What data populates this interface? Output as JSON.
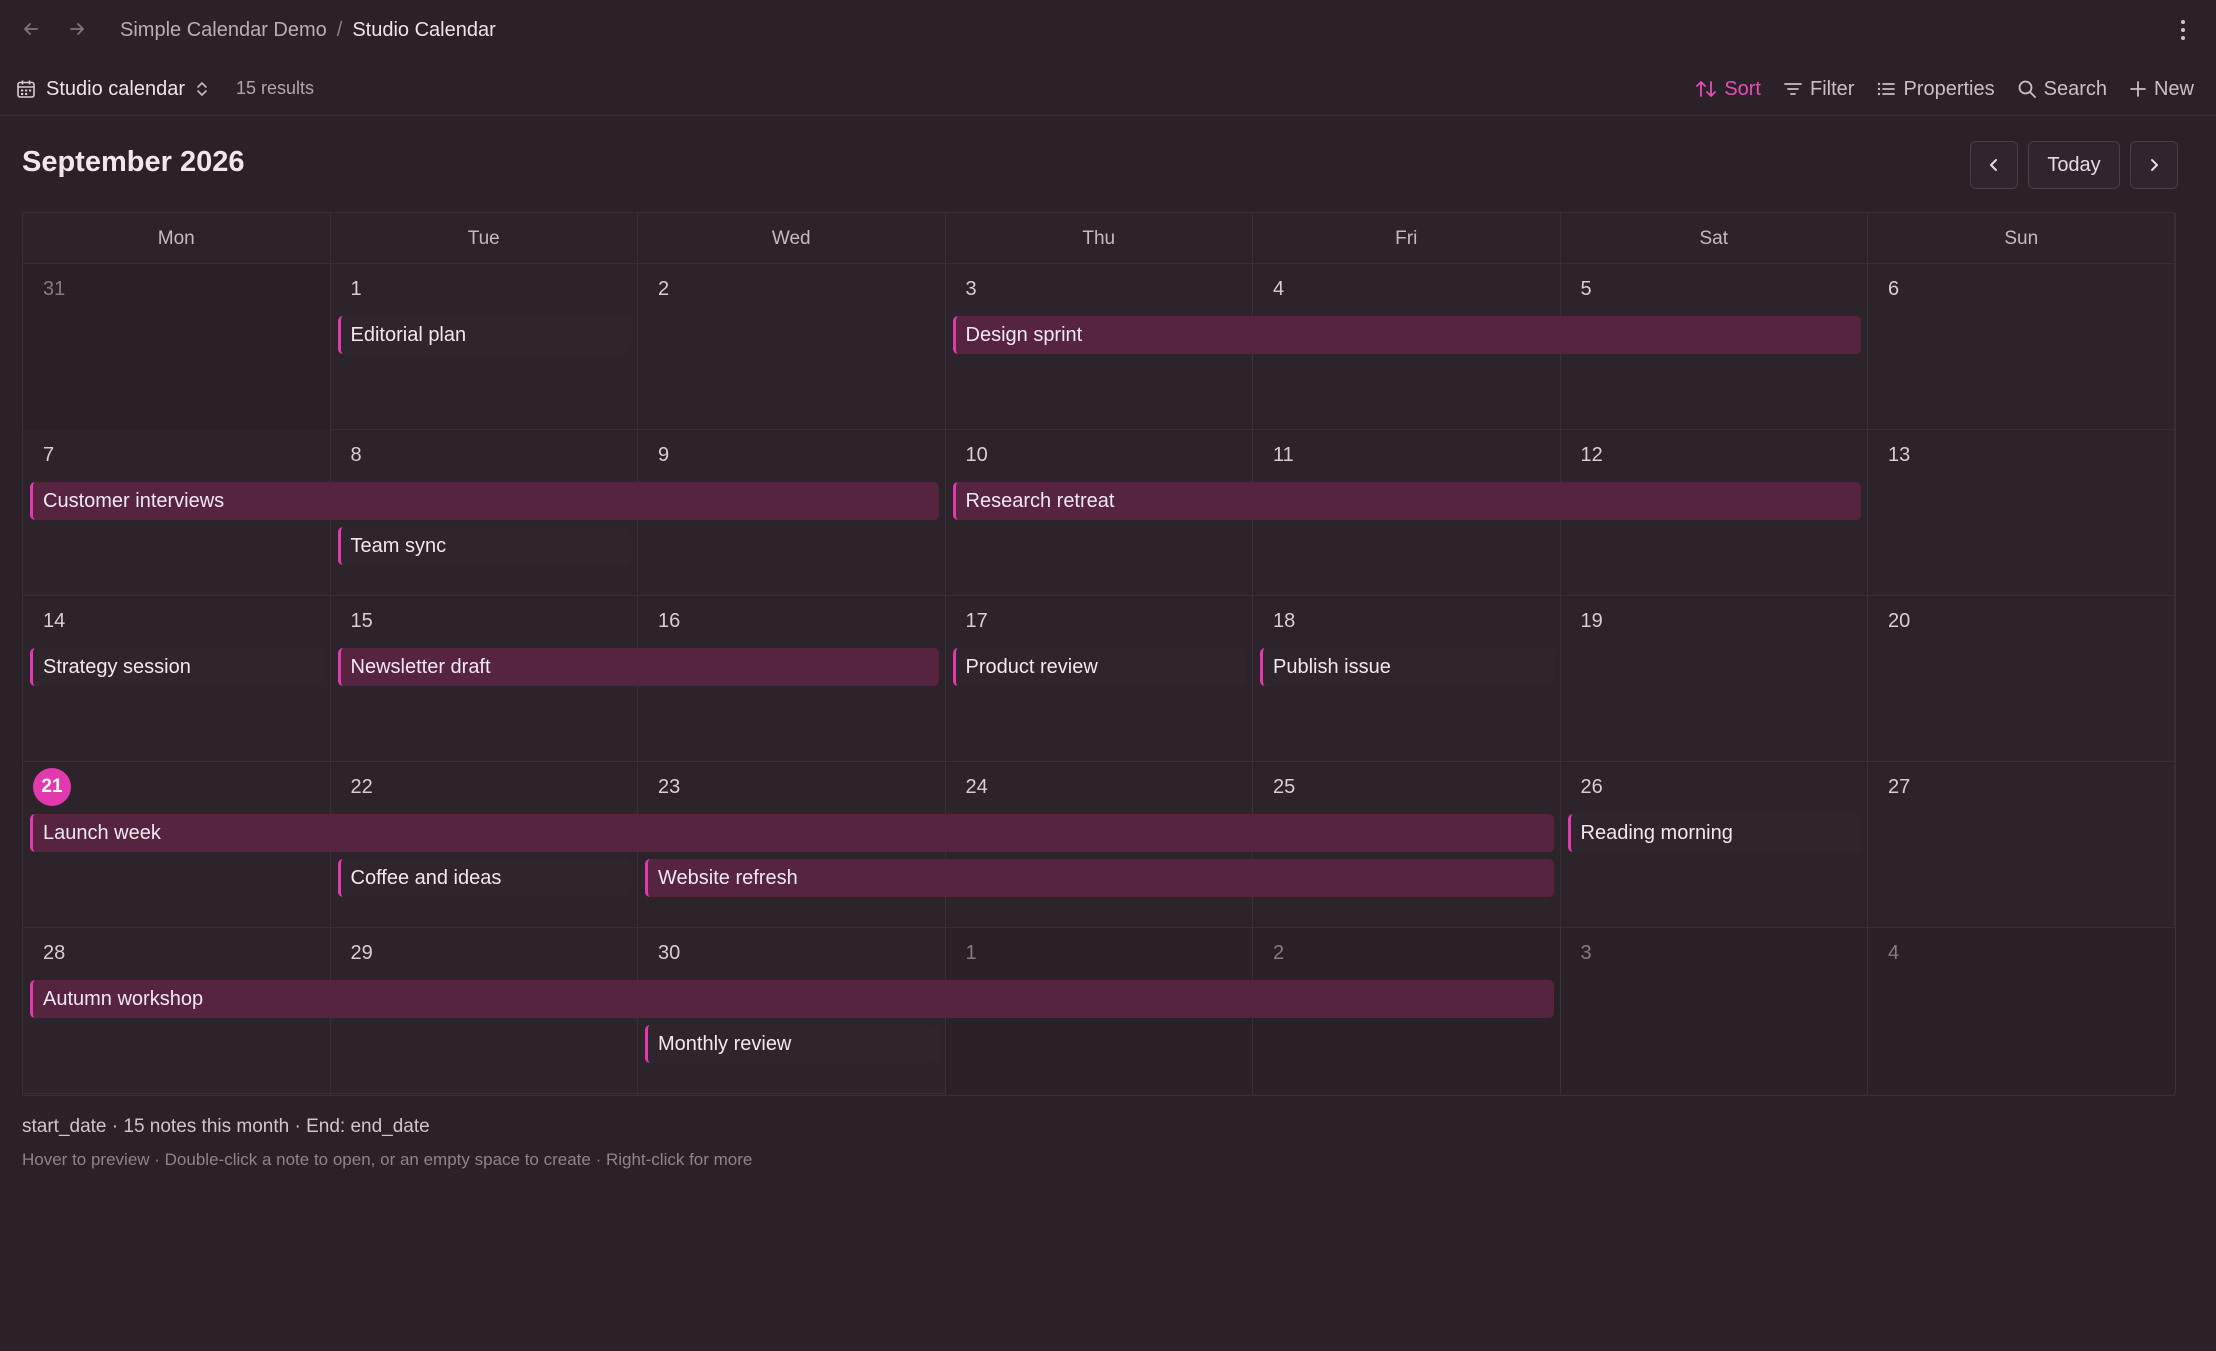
{
  "breadcrumb": {
    "parent": "Simple Calendar Demo",
    "separator": "/",
    "current": "Studio Calendar"
  },
  "toolbar": {
    "view_name": "Studio calendar",
    "results": "15 results",
    "actions": {
      "sort": "Sort",
      "filter": "Filter",
      "properties": "Properties",
      "search": "Search",
      "new": "New"
    }
  },
  "colors": {
    "accent": "#e23aae",
    "event_fill": "#56243f",
    "background": "#2b2129"
  },
  "month": {
    "title": "September 2026",
    "today_label": "Today"
  },
  "weekdays": [
    "Mon",
    "Tue",
    "Wed",
    "Thu",
    "Fri",
    "Sat",
    "Sun"
  ],
  "weeks": [
    [
      "31",
      "1",
      "2",
      "3",
      "4",
      "5",
      "6"
    ],
    [
      "7",
      "8",
      "9",
      "10",
      "11",
      "12",
      "13"
    ],
    [
      "14",
      "15",
      "16",
      "17",
      "18",
      "19",
      "20"
    ],
    [
      "21",
      "22",
      "23",
      "24",
      "25",
      "26",
      "27"
    ],
    [
      "28",
      "29",
      "30",
      "1",
      "2",
      "3",
      "4"
    ]
  ],
  "outside_days": {
    "w0": [
      0
    ],
    "w4": [
      3,
      4,
      5,
      6
    ]
  },
  "today": {
    "week": 3,
    "day": 0
  },
  "events": [
    {
      "title": "Editorial plan",
      "week": 0,
      "start_day": 1,
      "span_days": 1,
      "lane": 0
    },
    {
      "title": "Design sprint",
      "week": 0,
      "start_day": 3,
      "span_days": 3,
      "lane": 0
    },
    {
      "title": "Customer interviews",
      "week": 1,
      "start_day": 0,
      "span_days": 3,
      "lane": 0
    },
    {
      "title": "Research retreat",
      "week": 1,
      "start_day": 3,
      "span_days": 3,
      "lane": 0
    },
    {
      "title": "Team sync",
      "week": 1,
      "start_day": 1,
      "span_days": 1,
      "lane": 1
    },
    {
      "title": "Strategy session",
      "week": 2,
      "start_day": 0,
      "span_days": 1,
      "lane": 0
    },
    {
      "title": "Newsletter draft",
      "week": 2,
      "start_day": 1,
      "span_days": 2,
      "lane": 0
    },
    {
      "title": "Product review",
      "week": 2,
      "start_day": 3,
      "span_days": 1,
      "lane": 0
    },
    {
      "title": "Publish issue",
      "week": 2,
      "start_day": 4,
      "span_days": 1,
      "lane": 0
    },
    {
      "title": "Launch week",
      "week": 3,
      "start_day": 0,
      "span_days": 5,
      "lane": 0
    },
    {
      "title": "Reading morning",
      "week": 3,
      "start_day": 5,
      "span_days": 1,
      "lane": 0
    },
    {
      "title": "Coffee and ideas",
      "week": 3,
      "start_day": 1,
      "span_days": 1,
      "lane": 1
    },
    {
      "title": "Website refresh",
      "week": 3,
      "start_day": 2,
      "span_days": 3,
      "lane": 1
    },
    {
      "title": "Autumn workshop",
      "week": 4,
      "start_day": 0,
      "span_days": 5,
      "lane": 0
    },
    {
      "title": "Monthly review",
      "week": 4,
      "start_day": 2,
      "span_days": 1,
      "lane": 1
    }
  ],
  "footer": {
    "summary": "start_date · 15 notes this month · End: end_date",
    "hint": "Hover to preview · Double-click a note to open, or an empty space to create · Right-click for more"
  }
}
